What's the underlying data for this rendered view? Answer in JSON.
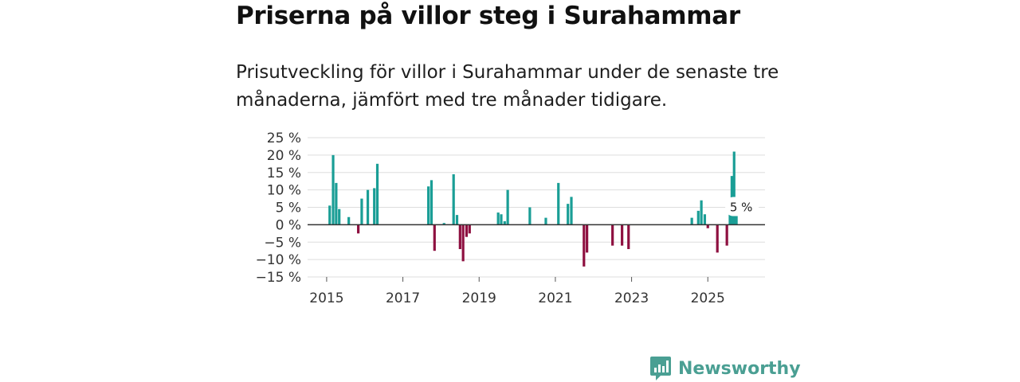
{
  "title": "Priserna på villor steg i Surahammar",
  "subtitle": "Prisutveckling för villor i Surahammar under de senaste tre månaderna, jämfört med tre månader tidigare.",
  "brand": {
    "name": "Newsworthy"
  },
  "colors": {
    "positive": "#1a9e96",
    "negative": "#8e1040",
    "zero_line": "#333333",
    "grid": "#dddddd",
    "brand": "#4a9f93"
  },
  "chart_data": {
    "type": "bar",
    "title": "Priserna på villor steg i Surahammar",
    "xlabel": "",
    "ylabel": "",
    "xlim": [
      2014.5,
      2026.5
    ],
    "ylim": [
      -15,
      25
    ],
    "y_ticks": [
      25,
      20,
      15,
      10,
      5,
      0,
      -5,
      -10,
      -15
    ],
    "y_tick_labels": [
      "25 %",
      "20 %",
      "15 %",
      "10 %",
      "5 %",
      "0 %",
      "−5 %",
      "−10 %",
      "−15 %"
    ],
    "x_ticks": [
      2015,
      2017,
      2019,
      2021,
      2023,
      2025
    ],
    "x_tick_labels": [
      "2015",
      "2017",
      "2019",
      "2021",
      "2023",
      "2025"
    ],
    "grid": true,
    "annotation": {
      "x": 2025.75,
      "value": 5,
      "label": "5 %"
    },
    "series": [
      {
        "name": "Prisutveckling",
        "points": [
          {
            "x": 2015.08,
            "y": 5.5
          },
          {
            "x": 2015.17,
            "y": 20.0
          },
          {
            "x": 2015.25,
            "y": 12.0
          },
          {
            "x": 2015.33,
            "y": 4.5
          },
          {
            "x": 2015.58,
            "y": 2.2
          },
          {
            "x": 2015.83,
            "y": -2.5
          },
          {
            "x": 2015.92,
            "y": 7.5
          },
          {
            "x": 2016.08,
            "y": 10.0
          },
          {
            "x": 2016.25,
            "y": 10.5
          },
          {
            "x": 2016.33,
            "y": 17.5
          },
          {
            "x": 2017.67,
            "y": 11.0
          },
          {
            "x": 2017.75,
            "y": 12.8
          },
          {
            "x": 2017.83,
            "y": -7.5
          },
          {
            "x": 2018.08,
            "y": 0.5
          },
          {
            "x": 2018.33,
            "y": 14.5
          },
          {
            "x": 2018.42,
            "y": 2.8
          },
          {
            "x": 2018.5,
            "y": -7.0
          },
          {
            "x": 2018.58,
            "y": -10.5
          },
          {
            "x": 2018.67,
            "y": -3.5
          },
          {
            "x": 2018.75,
            "y": -2.5
          },
          {
            "x": 2019.5,
            "y": 3.5
          },
          {
            "x": 2019.58,
            "y": 3.0
          },
          {
            "x": 2019.67,
            "y": 1.0
          },
          {
            "x": 2019.75,
            "y": 10.0
          },
          {
            "x": 2020.33,
            "y": 5.0
          },
          {
            "x": 2020.75,
            "y": 2.0
          },
          {
            "x": 2021.08,
            "y": 12.0
          },
          {
            "x": 2021.33,
            "y": 6.0
          },
          {
            "x": 2021.42,
            "y": 8.0
          },
          {
            "x": 2021.75,
            "y": -12.0
          },
          {
            "x": 2021.83,
            "y": -8.0
          },
          {
            "x": 2022.5,
            "y": -6.0
          },
          {
            "x": 2022.75,
            "y": -6.0
          },
          {
            "x": 2022.92,
            "y": -7.0
          },
          {
            "x": 2024.58,
            "y": 2.0
          },
          {
            "x": 2024.75,
            "y": 4.0
          },
          {
            "x": 2024.83,
            "y": 7.0
          },
          {
            "x": 2024.92,
            "y": 3.0
          },
          {
            "x": 2025.0,
            "y": -1.0
          },
          {
            "x": 2025.25,
            "y": -8.0
          },
          {
            "x": 2025.5,
            "y": -6.0
          },
          {
            "x": 2025.58,
            "y": 7.0
          },
          {
            "x": 2025.63,
            "y": 14.0
          },
          {
            "x": 2025.69,
            "y": 21.0
          },
          {
            "x": 2025.75,
            "y": 5.0
          }
        ]
      }
    ]
  }
}
